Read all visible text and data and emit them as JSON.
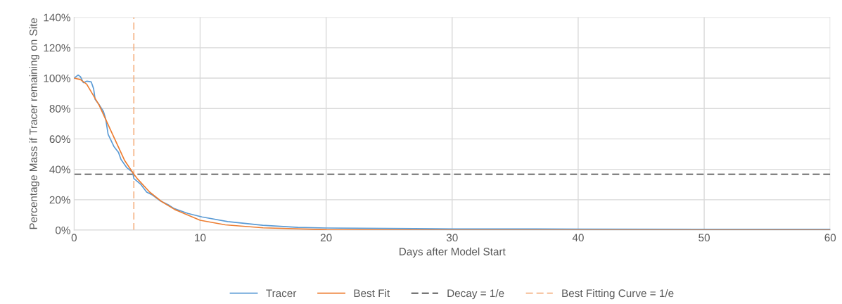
{
  "chart_data": {
    "type": "line",
    "xlabel": "Days after Model Start",
    "ylabel": "Percentage Mass if Tracer remaining on Site",
    "xlim": [
      0,
      60
    ],
    "xticks": [
      0,
      10,
      20,
      30,
      40,
      50,
      60
    ],
    "ylim": [
      0,
      140
    ],
    "yticks": [
      {
        "value": 0,
        "label": "0%"
      },
      {
        "value": 20,
        "label": "20%"
      },
      {
        "value": 40,
        "label": "40%"
      },
      {
        "value": 60,
        "label": "60%"
      },
      {
        "value": 80,
        "label": "80%"
      },
      {
        "value": 100,
        "label": "100%"
      },
      {
        "value": 120,
        "label": "120%"
      },
      {
        "value": 140,
        "label": "140%"
      }
    ],
    "grid": true,
    "legend": "bottom",
    "marker": "none",
    "line_style": "solid",
    "series": [
      {
        "name": "Tracer",
        "color": "#5b9bd5",
        "x": [
          0,
          0.32,
          0.5,
          0.74,
          1.02,
          1.36,
          1.55,
          1.67,
          1.95,
          2.33,
          2.51,
          2.7,
          3.16,
          3.53,
          3.72,
          4.19,
          4.65,
          4.74,
          5.3,
          5.76,
          6.23,
          6.79,
          7.53,
          7.9,
          9.02,
          10.14,
          12.18,
          14.97,
          17.76,
          20,
          27,
          30,
          40,
          50,
          60
        ],
        "values": [
          100,
          102,
          101,
          97,
          98,
          97.5,
          93,
          86,
          83,
          78,
          73,
          63,
          55,
          51,
          46.5,
          41,
          38,
          34,
          30,
          25,
          23,
          19.5,
          16.4,
          14.4,
          11,
          8.7,
          5.6,
          3.2,
          1.8,
          1.4,
          1,
          0.8,
          0.7,
          0.6,
          0.5
        ]
      },
      {
        "name": "Best Fit",
        "color": "#ed7d31",
        "x": [
          0,
          0.5,
          1,
          2,
          3,
          4,
          4.74,
          5,
          6,
          7,
          8,
          10,
          12,
          15,
          20,
          30,
          40,
          50,
          60
        ],
        "values": [
          100,
          99,
          96,
          82,
          64,
          46,
          36.8,
          34,
          25,
          18.5,
          13.5,
          6.5,
          3.5,
          1.5,
          0.3,
          0,
          0,
          0,
          0
        ]
      },
      {
        "name": "Decay = 1/e",
        "color": "#404040",
        "line_style": "dashed",
        "x": [
          0,
          60
        ],
        "values": [
          36.8,
          36.8
        ]
      },
      {
        "name": "Best Fitting Curve = 1/e",
        "color": "#f4b183",
        "line_style": "dashed",
        "x": [
          4.74,
          4.74
        ],
        "values": [
          0,
          140
        ]
      }
    ]
  }
}
